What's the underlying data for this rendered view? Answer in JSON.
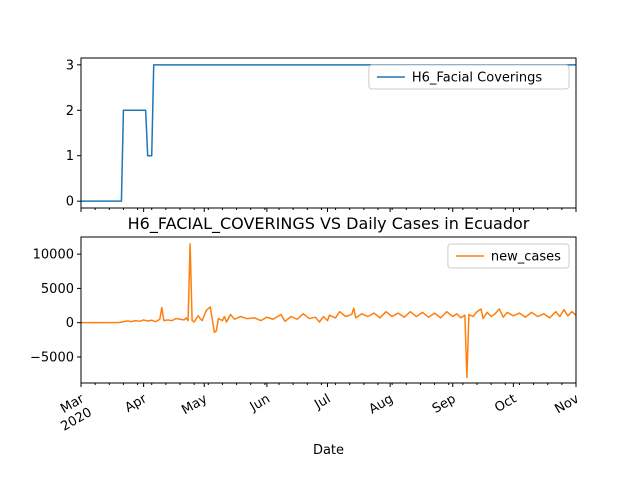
{
  "figure": {
    "xlabel": "Date",
    "x_ticks": [
      {
        "date": "2020-03-01",
        "label": "Mar",
        "sublabel": "2020"
      },
      {
        "date": "2020-04-01",
        "label": "Apr"
      },
      {
        "date": "2020-05-01",
        "label": "May"
      },
      {
        "date": "2020-06-01",
        "label": "Jun"
      },
      {
        "date": "2020-07-01",
        "label": "Jul"
      },
      {
        "date": "2020-08-01",
        "label": "Aug"
      },
      {
        "date": "2020-09-01",
        "label": "Sep"
      },
      {
        "date": "2020-10-01",
        "label": "Oct"
      },
      {
        "date": "2020-11-01",
        "label": "Nov"
      }
    ],
    "x_range": [
      "2020-03-01",
      "2020-11-01"
    ]
  },
  "chart_data": [
    {
      "type": "line",
      "title": "",
      "xlabel": "",
      "ylabel": "",
      "ylim": [
        -0.15,
        3.15
      ],
      "yticks": [
        0,
        1,
        2,
        3
      ],
      "legend": "upper-right",
      "grid": false,
      "series": [
        {
          "name": "H6_Facial Coverings",
          "color": "#1f77b4",
          "points": [
            [
              "2020-03-01",
              0
            ],
            [
              "2020-03-21",
              0
            ],
            [
              "2020-03-22",
              2
            ],
            [
              "2020-04-02",
              2
            ],
            [
              "2020-04-03",
              1
            ],
            [
              "2020-04-05",
              1
            ],
            [
              "2020-04-06",
              3
            ],
            [
              "2020-11-01",
              3
            ]
          ]
        }
      ]
    },
    {
      "type": "line",
      "title": "H6_FACIAL_COVERINGS VS Daily Cases in Ecuador",
      "xlabel": "Date",
      "ylabel": "",
      "ylim": [
        -8800,
        12500
      ],
      "yticks": [
        -5000,
        0,
        5000,
        10000
      ],
      "legend": "upper-right",
      "grid": false,
      "series": [
        {
          "name": "new_cases",
          "color": "#ff7f0e",
          "points": [
            [
              "2020-03-01",
              0
            ],
            [
              "2020-03-10",
              5
            ],
            [
              "2020-03-20",
              30
            ],
            [
              "2020-03-22",
              150
            ],
            [
              "2020-03-24",
              250
            ],
            [
              "2020-03-26",
              150
            ],
            [
              "2020-03-28",
              300
            ],
            [
              "2020-03-30",
              200
            ],
            [
              "2020-04-01",
              400
            ],
            [
              "2020-04-03",
              250
            ],
            [
              "2020-04-05",
              350
            ],
            [
              "2020-04-07",
              150
            ],
            [
              "2020-04-09",
              500
            ],
            [
              "2020-04-10",
              2200
            ],
            [
              "2020-04-11",
              300
            ],
            [
              "2020-04-13",
              400
            ],
            [
              "2020-04-15",
              300
            ],
            [
              "2020-04-17",
              600
            ],
            [
              "2020-04-19",
              500
            ],
            [
              "2020-04-21",
              400
            ],
            [
              "2020-04-22",
              700
            ],
            [
              "2020-04-23",
              300
            ],
            [
              "2020-04-24",
              11500
            ],
            [
              "2020-04-25",
              300
            ],
            [
              "2020-04-26",
              100
            ],
            [
              "2020-04-28",
              1000
            ],
            [
              "2020-04-29",
              600
            ],
            [
              "2020-04-30",
              300
            ],
            [
              "2020-05-02",
              1800
            ],
            [
              "2020-05-04",
              2300
            ],
            [
              "2020-05-06",
              -1400
            ],
            [
              "2020-05-07",
              -1200
            ],
            [
              "2020-05-08",
              600
            ],
            [
              "2020-05-10",
              300
            ],
            [
              "2020-05-11",
              900
            ],
            [
              "2020-05-12",
              100
            ],
            [
              "2020-05-14",
              1200
            ],
            [
              "2020-05-16",
              500
            ],
            [
              "2020-05-19",
              900
            ],
            [
              "2020-05-22",
              600
            ],
            [
              "2020-05-26",
              700
            ],
            [
              "2020-05-29",
              300
            ],
            [
              "2020-06-01",
              800
            ],
            [
              "2020-06-04",
              500
            ],
            [
              "2020-06-08",
              1200
            ],
            [
              "2020-06-10",
              200
            ],
            [
              "2020-06-13",
              900
            ],
            [
              "2020-06-16",
              500
            ],
            [
              "2020-06-19",
              1300
            ],
            [
              "2020-06-22",
              600
            ],
            [
              "2020-06-25",
              800
            ],
            [
              "2020-06-27",
              100
            ],
            [
              "2020-06-29",
              900
            ],
            [
              "2020-07-01",
              300
            ],
            [
              "2020-07-02",
              1100
            ],
            [
              "2020-07-05",
              700
            ],
            [
              "2020-07-07",
              1600
            ],
            [
              "2020-07-10",
              900
            ],
            [
              "2020-07-13",
              1200
            ],
            [
              "2020-07-14",
              2100
            ],
            [
              "2020-07-15",
              700
            ],
            [
              "2020-07-18",
              1300
            ],
            [
              "2020-07-21",
              900
            ],
            [
              "2020-07-24",
              1400
            ],
            [
              "2020-07-27",
              700
            ],
            [
              "2020-07-30",
              1600
            ],
            [
              "2020-08-02",
              900
            ],
            [
              "2020-08-05",
              1400
            ],
            [
              "2020-08-08",
              800
            ],
            [
              "2020-08-11",
              1600
            ],
            [
              "2020-08-14",
              900
            ],
            [
              "2020-08-17",
              1500
            ],
            [
              "2020-08-20",
              800
            ],
            [
              "2020-08-23",
              1400
            ],
            [
              "2020-08-26",
              700
            ],
            [
              "2020-08-29",
              1600
            ],
            [
              "2020-09-01",
              900
            ],
            [
              "2020-09-03",
              1300
            ],
            [
              "2020-09-05",
              700
            ],
            [
              "2020-09-07",
              1100
            ],
            [
              "2020-09-08",
              -8000
            ],
            [
              "2020-09-09",
              1200
            ],
            [
              "2020-09-11",
              900
            ],
            [
              "2020-09-13",
              1600
            ],
            [
              "2020-09-15",
              2000
            ],
            [
              "2020-09-16",
              600
            ],
            [
              "2020-09-18",
              1500
            ],
            [
              "2020-09-20",
              900
            ],
            [
              "2020-09-22",
              1300
            ],
            [
              "2020-09-24",
              2000
            ],
            [
              "2020-09-26",
              800
            ],
            [
              "2020-09-28",
              1500
            ],
            [
              "2020-10-01",
              1000
            ],
            [
              "2020-10-04",
              1400
            ],
            [
              "2020-10-07",
              800
            ],
            [
              "2020-10-10",
              1500
            ],
            [
              "2020-10-13",
              900
            ],
            [
              "2020-10-16",
              1300
            ],
            [
              "2020-10-19",
              700
            ],
            [
              "2020-10-22",
              1600
            ],
            [
              "2020-10-24",
              900
            ],
            [
              "2020-10-26",
              1900
            ],
            [
              "2020-10-28",
              1000
            ],
            [
              "2020-10-30",
              1600
            ],
            [
              "2020-11-01",
              1100
            ]
          ]
        }
      ]
    }
  ]
}
